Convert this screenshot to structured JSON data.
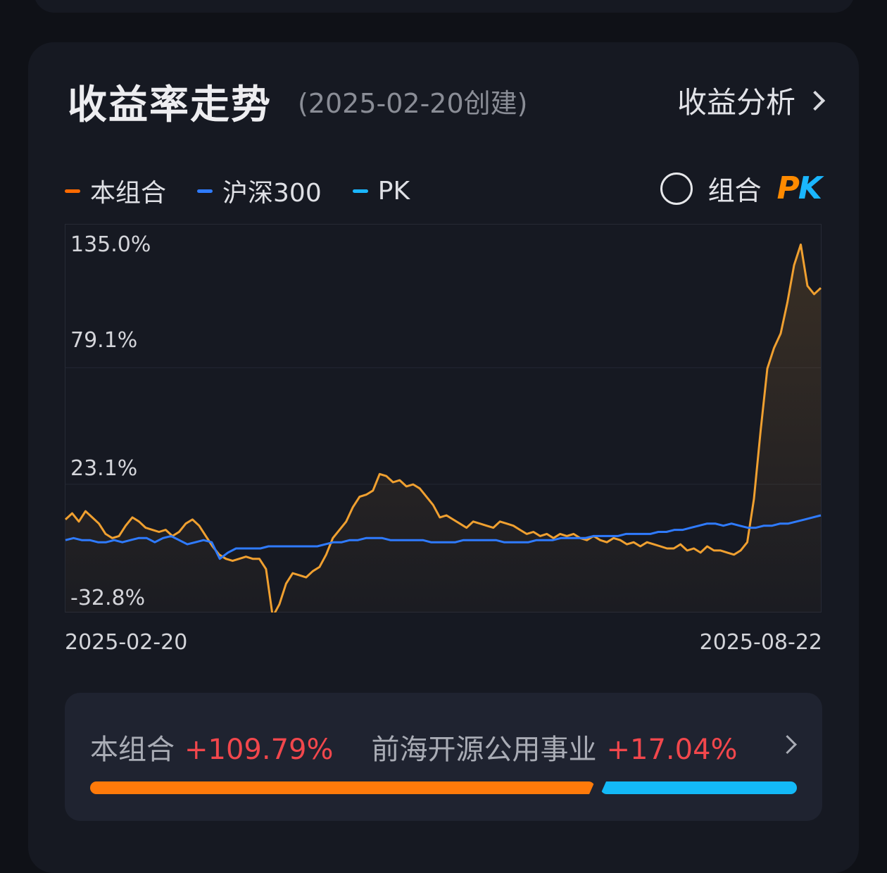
{
  "header": {
    "title": "收益率走势",
    "subtitle": "(2025-02-20创建)",
    "analysis_link": "收益分析"
  },
  "legend": {
    "items": [
      {
        "label": "本组合",
        "color": "#ff6a00"
      },
      {
        "label": "沪深300",
        "color": "#2f7bff"
      },
      {
        "label": "PK",
        "color": "#1ab6ff"
      }
    ],
    "pk_toggle_label": "组合",
    "pk_logo_p": "P",
    "pk_logo_k": "K"
  },
  "chart_data": {
    "type": "line",
    "title": "",
    "xlabel": "",
    "ylabel": "",
    "y_tick_labels": [
      "135.0%",
      "79.1%",
      "23.1%",
      "-32.8%"
    ],
    "ylim": [
      -40,
      148
    ],
    "x_start_label": "2025-02-20",
    "x_end_label": "2025-08-22",
    "grid": "horizontal",
    "series": [
      {
        "name": "本组合",
        "color": "#f0a030",
        "values": [
          5,
          8,
          4,
          9,
          6,
          3,
          -2,
          -4,
          -3,
          2,
          6,
          4,
          1,
          0,
          -1,
          0,
          -3,
          -1,
          3,
          5,
          2,
          -3,
          -8,
          -12,
          -14,
          -15,
          -14,
          -13,
          -14,
          -14,
          -19,
          -42,
          -36,
          -26,
          -21,
          -22,
          -23,
          -20,
          -18,
          -12,
          -4,
          0,
          4,
          11,
          16,
          17,
          19,
          27,
          26,
          23,
          24,
          21,
          22,
          20,
          16,
          12,
          6,
          7,
          5,
          3,
          1,
          4,
          3,
          2,
          1,
          4,
          3,
          2,
          0,
          -2,
          -1,
          -3,
          -2,
          -4,
          -2,
          -3,
          -2,
          -4,
          -5,
          -3,
          -5,
          -6,
          -4,
          -5,
          -7,
          -6,
          -8,
          -6,
          -7,
          -8,
          -9,
          -9,
          -7,
          -10,
          -9,
          -11,
          -8,
          -10,
          -10,
          -11,
          -12,
          -10,
          -6,
          15,
          48,
          78,
          88,
          95,
          110,
          128,
          138,
          118,
          114,
          117
        ],
        "x_label_first": "2025-02-20",
        "x_label_last": "2025-08-22"
      },
      {
        "name": "沪深300",
        "color": "#2f7bff",
        "values": [
          -5,
          -4,
          -5,
          -5,
          -6,
          -6,
          -5,
          -6,
          -5,
          -4,
          -4,
          -6,
          -4,
          -3,
          -5,
          -7,
          -6,
          -5,
          -6,
          -14,
          -11,
          -9,
          -9,
          -9,
          -9,
          -8,
          -8,
          -8,
          -8,
          -8,
          -8,
          -8,
          -7,
          -6,
          -6,
          -5,
          -5,
          -4,
          -4,
          -4,
          -5,
          -5,
          -5,
          -5,
          -5,
          -6,
          -6,
          -6,
          -6,
          -5,
          -5,
          -5,
          -5,
          -5,
          -6,
          -6,
          -6,
          -6,
          -5,
          -5,
          -5,
          -4,
          -4,
          -4,
          -4,
          -3,
          -3,
          -3,
          -3,
          -2,
          -2,
          -2,
          -2,
          -1,
          -1,
          0,
          0,
          1,
          2,
          3,
          3,
          2,
          3,
          2,
          1,
          1,
          2,
          2,
          3,
          3,
          4,
          5,
          6,
          7
        ],
        "x_label_first": "2025-02-20",
        "x_label_last": "2025-08-22"
      }
    ]
  },
  "comparison": {
    "left_label": "本组合",
    "left_value": "+109.79%",
    "right_label": "前海开源公用事业",
    "right_value": "+17.04%",
    "left_share": 0.714
  }
}
